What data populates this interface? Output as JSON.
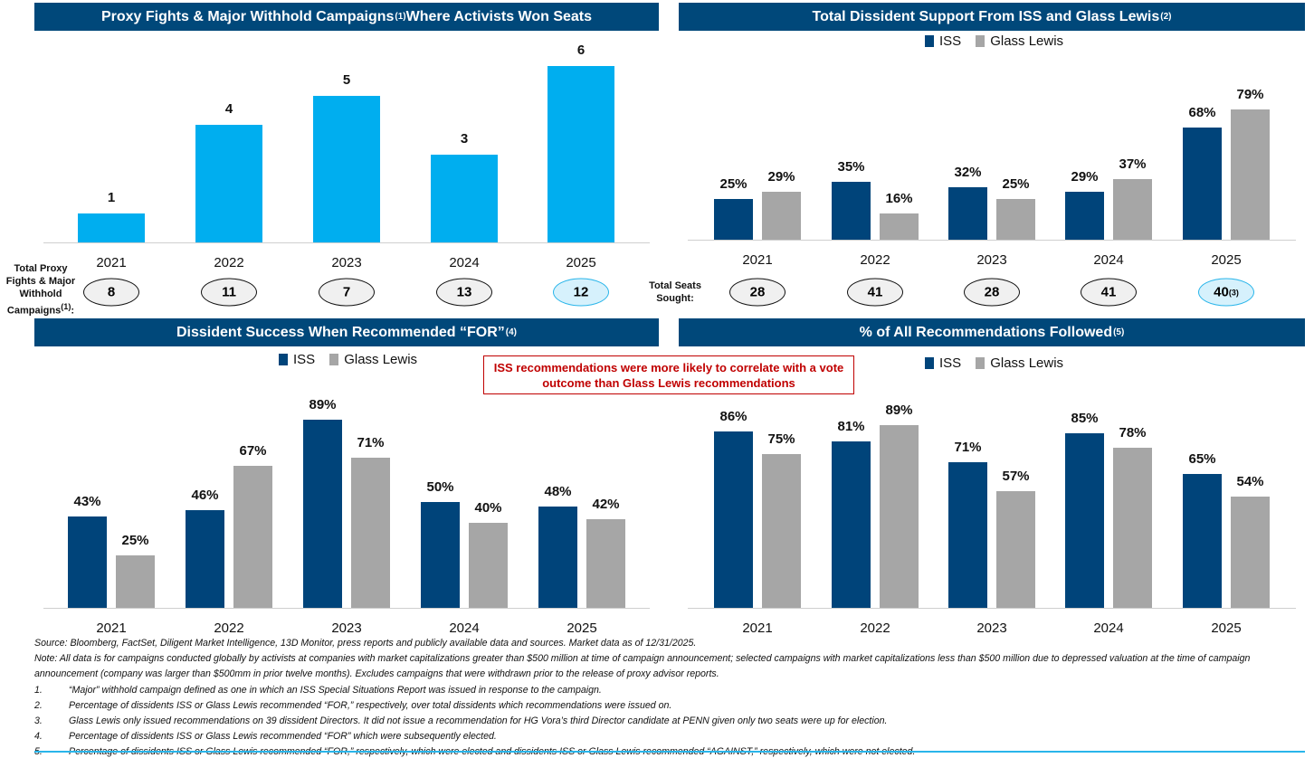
{
  "colors": {
    "header": "#00487a",
    "light_blue": "#00aeef",
    "iss": "#00447a",
    "glass_lewis": "#a6a6a6"
  },
  "chart_data": [
    {
      "type": "bar",
      "title": "Proxy Fights & Major Withhold Campaigns",
      "title_sup": "(1)",
      "title_suffix": " Where Activists Won Seats",
      "categories": [
        "2021",
        "2022",
        "2023",
        "2024",
        "2025"
      ],
      "values": [
        1,
        4,
        5,
        3,
        6
      ],
      "row_label": [
        "Total Proxy",
        "Fights & Major",
        "Withhold",
        "Campaigns"
      ],
      "row_label_sup": "(1)",
      "row_values": [
        "8",
        "11",
        "7",
        "13",
        "12"
      ],
      "highlight": "2025"
    },
    {
      "type": "bar",
      "title": "Total Dissident Support From ISS and Glass Lewis",
      "title_sup": "(2)",
      "categories": [
        "2021",
        "2022",
        "2023",
        "2024",
        "2025"
      ],
      "series": [
        {
          "name": "ISS",
          "values": [
            25,
            35,
            32,
            29,
            68
          ]
        },
        {
          "name": "Glass Lewis",
          "values": [
            29,
            16,
            25,
            37,
            79
          ]
        }
      ],
      "row_label": [
        "Total Seats",
        "Sought:"
      ],
      "row_values": [
        "28",
        "41",
        "28",
        "41",
        "40"
      ],
      "row_value_sups": [
        "",
        "",
        "",
        "",
        "(3)"
      ],
      "highlight": "2025"
    },
    {
      "type": "bar",
      "title": "Dissident Success When Recommended “FOR”",
      "title_sup": "(4)",
      "categories": [
        "2021",
        "2022",
        "2023",
        "2024",
        "2025"
      ],
      "series": [
        {
          "name": "ISS",
          "values": [
            43,
            46,
            89,
            50,
            48
          ]
        },
        {
          "name": "Glass Lewis",
          "values": [
            25,
            67,
            71,
            40,
            42
          ]
        }
      ]
    },
    {
      "type": "bar",
      "title": "% of All Recommendations Followed",
      "title_sup": "(5)",
      "categories": [
        "2021",
        "2022",
        "2023",
        "2024",
        "2025"
      ],
      "series": [
        {
          "name": "ISS",
          "values": [
            86,
            81,
            71,
            85,
            65
          ]
        },
        {
          "name": "Glass Lewis",
          "values": [
            75,
            89,
            57,
            78,
            54
          ]
        }
      ]
    }
  ],
  "callout": "ISS recommendations were more likely to correlate with a vote outcome than Glass Lewis recommendations",
  "notes": {
    "source": "Source: Bloomberg, FactSet, Diligent Market Intelligence, 13D Monitor, press reports and publicly available data and sources. Market data as of 12/31/2025.",
    "note": "Note: All data is for campaigns conducted globally by activists at companies with market capitalizations greater than $500 million at time of campaign announcement; selected campaigns with market capitalizations less than $500 million due to depressed valuation at the time of campaign announcement (company was larger than $500mm in prior twelve months). Excludes campaigns that were withdrawn prior to the release of proxy advisor reports.",
    "footnotes": [
      {
        "num": "1.",
        "text": "“Major” withhold campaign defined as one in which an ISS Special Situations Report was issued in response to the campaign."
      },
      {
        "num": "2.",
        "text": "Percentage of dissidents ISS or Glass Lewis recommended “FOR,” respectively, over total dissidents which recommendations were issued on."
      },
      {
        "num": "3.",
        "text": "Glass Lewis only issued recommendations on 39 dissident Directors. It did not issue a recommendation for HG Vora’s third Director candidate at PENN given only two seats were up for election."
      },
      {
        "num": "4.",
        "text": "Percentage of dissidents ISS or Glass Lewis recommended “FOR” which were subsequently elected."
      },
      {
        "num": "5.",
        "text": "Percentage of dissidents ISS or Glass Lewis recommended “FOR,” respectively, which were elected and dissidents ISS or Glass Lewis recommended “AGAINST,” respectively, which were not elected."
      }
    ]
  }
}
